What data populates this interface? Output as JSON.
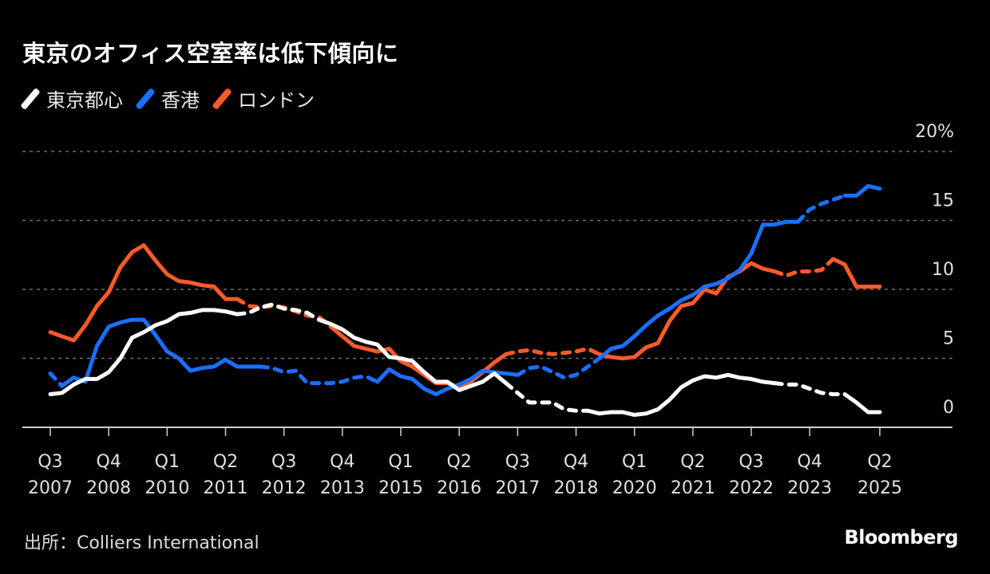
{
  "chart_data": {
    "type": "line",
    "title": "東京のオフィス空室率は低下傾向に",
    "xlabel": "",
    "ylabel": "",
    "ylim": [
      0,
      20
    ],
    "y_ticks": [
      {
        "value": 0,
        "label": "0"
      },
      {
        "value": 5,
        "label": "5"
      },
      {
        "value": 10,
        "label": "10"
      },
      {
        "value": 15,
        "label": "15"
      },
      {
        "value": 20,
        "label": "20%"
      }
    ],
    "grid": true,
    "legend_position": "top-left",
    "x_start": "Q3 2007",
    "x_end": "Q2 2025",
    "x_unit": "quarter",
    "x_ticks": [
      {
        "index": 0,
        "q": "Q3",
        "year": "2007"
      },
      {
        "index": 5,
        "q": "Q4",
        "year": "2008"
      },
      {
        "index": 10,
        "q": "Q1",
        "year": "2010"
      },
      {
        "index": 15,
        "q": "Q2",
        "year": "2011"
      },
      {
        "index": 20,
        "q": "Q3",
        "year": "2012"
      },
      {
        "index": 25,
        "q": "Q4",
        "year": "2013"
      },
      {
        "index": 30,
        "q": "Q1",
        "year": "2015"
      },
      {
        "index": 35,
        "q": "Q2",
        "year": "2016"
      },
      {
        "index": 40,
        "q": "Q3",
        "year": "2017"
      },
      {
        "index": 45,
        "q": "Q4",
        "year": "2018"
      },
      {
        "index": 50,
        "q": "Q1",
        "year": "2020"
      },
      {
        "index": 55,
        "q": "Q2",
        "year": "2021"
      },
      {
        "index": 60,
        "q": "Q3",
        "year": "2022"
      },
      {
        "index": 65,
        "q": "Q4",
        "year": "2023"
      },
      {
        "index": 71,
        "q": "Q2",
        "year": "2025"
      }
    ],
    "series": [
      {
        "name": "東京都心",
        "color": "#ffffff",
        "dashed_ranges": [
          [
            16,
            23
          ],
          [
            39,
            46
          ],
          [
            62,
            68
          ]
        ],
        "values": [
          2.4,
          2.5,
          3.1,
          3.5,
          3.5,
          4.0,
          5.0,
          6.5,
          6.9,
          7.4,
          7.7,
          8.2,
          8.3,
          8.5,
          8.5,
          8.4,
          8.2,
          8.3,
          8.7,
          8.9,
          8.6,
          8.5,
          8.3,
          7.8,
          7.5,
          7.1,
          6.5,
          6.2,
          6.0,
          5.1,
          5.0,
          4.8,
          4.0,
          3.3,
          3.3,
          2.7,
          3.0,
          3.3,
          3.9,
          3.2,
          2.5,
          1.8,
          1.8,
          1.8,
          1.3,
          1.2,
          1.2,
          1.0,
          1.1,
          1.1,
          0.9,
          1.0,
          1.3,
          2.0,
          2.9,
          3.4,
          3.7,
          3.6,
          3.8,
          3.6,
          3.5,
          3.3,
          3.2,
          3.1,
          3.1,
          2.8,
          2.5,
          2.4,
          2.4,
          1.8,
          1.1,
          1.1
        ]
      },
      {
        "name": "香港",
        "color": "#1a6fff",
        "dashed_ranges": [
          [
            0,
            1
          ],
          [
            18,
            28
          ],
          [
            40,
            47
          ],
          [
            64,
            68
          ]
        ],
        "values": [
          3.9,
          3.0,
          3.6,
          3.3,
          5.9,
          7.3,
          7.6,
          7.8,
          7.8,
          6.7,
          5.5,
          5.0,
          4.1,
          4.3,
          4.4,
          4.9,
          4.4,
          4.4,
          4.4,
          4.3,
          4.0,
          4.1,
          3.2,
          3.2,
          3.2,
          3.3,
          3.6,
          3.7,
          3.3,
          4.2,
          3.7,
          3.5,
          2.8,
          2.4,
          2.8,
          3.1,
          3.5,
          4.1,
          4.0,
          3.9,
          3.8,
          4.3,
          4.4,
          4.0,
          3.6,
          3.8,
          4.4,
          5.0,
          5.7,
          5.9,
          6.6,
          7.4,
          8.1,
          8.6,
          9.2,
          9.6,
          10.2,
          10.4,
          10.8,
          11.4,
          12.6,
          14.7,
          14.7,
          14.9,
          14.9,
          15.8,
          16.2,
          16.5,
          16.8,
          16.8,
          17.5,
          17.3
        ]
      },
      {
        "name": "ロンドン",
        "color": "#ff5a2a",
        "dashed_ranges": [
          [
            16,
            24
          ],
          [
            39,
            47
          ],
          [
            62,
            67
          ]
        ],
        "values": [
          6.9,
          6.6,
          6.3,
          7.4,
          8.8,
          9.8,
          11.6,
          12.7,
          13.2,
          12.1,
          11.1,
          10.6,
          10.5,
          10.3,
          10.2,
          9.3,
          9.3,
          8.8,
          8.7,
          8.8,
          8.7,
          8.4,
          8.1,
          8.0,
          7.3,
          6.6,
          5.9,
          5.7,
          5.5,
          5.7,
          4.8,
          4.4,
          3.8,
          3.2,
          3.2,
          2.9,
          3.3,
          4.0,
          4.7,
          5.3,
          5.5,
          5.6,
          5.4,
          5.3,
          5.4,
          5.5,
          5.7,
          5.3,
          5.1,
          5.0,
          5.1,
          5.8,
          6.1,
          7.7,
          8.8,
          9.0,
          10.0,
          9.7,
          10.9,
          11.3,
          11.9,
          11.5,
          11.3,
          11.0,
          11.3,
          11.3,
          11.4,
          12.2,
          11.8,
          10.2,
          10.2,
          10.2
        ]
      }
    ]
  },
  "title": "東京のオフィス空室率は低下傾向に",
  "legend": [
    {
      "label": "東京都心",
      "color": "#ffffff"
    },
    {
      "label": "香港",
      "color": "#1a6fff"
    },
    {
      "label": "ロンドン",
      "color": "#ff5a2a"
    }
  ],
  "source": "出所：Colliers International",
  "brand": "Bloomberg"
}
